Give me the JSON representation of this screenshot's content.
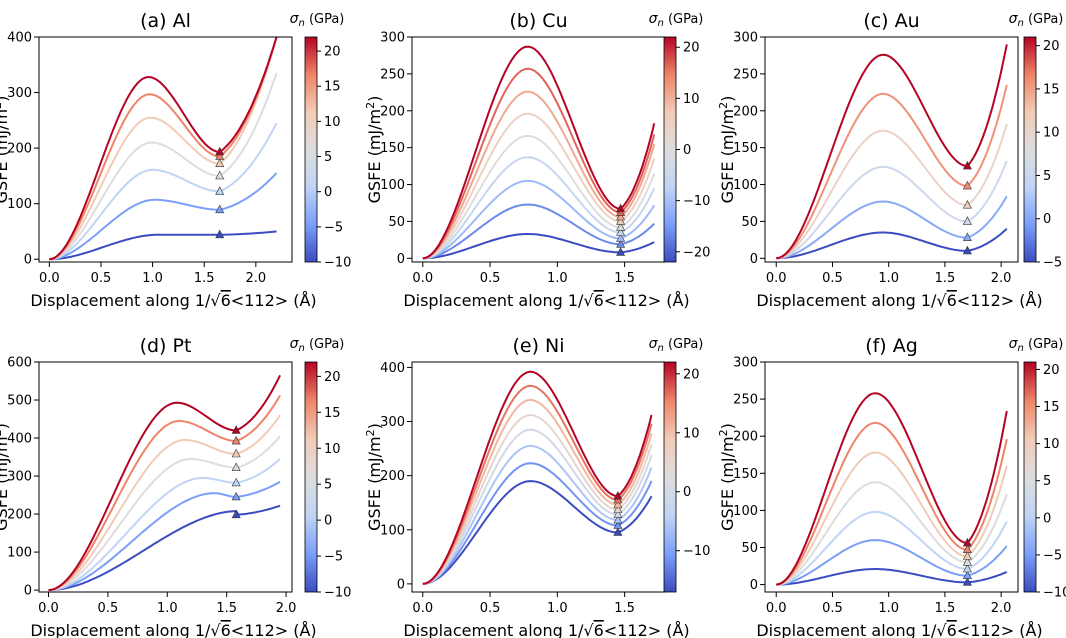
{
  "figure": {
    "x_axis_label_prefix": "Displacement along 1/",
    "x_axis_label_root": "6",
    "x_axis_label_suffix": "<112> (Å)",
    "y_axis_label": "GSFE (mJ/m",
    "y_axis_label_sup": "2",
    "y_axis_label_close": ")",
    "colorbar_title_symbol": "σ",
    "colorbar_title_sub": "n",
    "colorbar_title_unit": "(GPa)",
    "colormap": [
      "#3b4cc0",
      "#7b9ff9",
      "#c0d4f5",
      "#dddddd",
      "#f2cbb7",
      "#ee8468",
      "#b40426"
    ]
  },
  "chart_data": [
    {
      "type": "line",
      "title": "(a) Al",
      "xlim": [
        -0.1,
        2.35
      ],
      "ylim": [
        -5,
        400
      ],
      "xticks": [
        "0.0",
        "0.5",
        "1.0",
        "1.5",
        "2.0"
      ],
      "yticks": [
        "0",
        "100",
        "200",
        "300",
        "400"
      ],
      "cbar_range": [
        -10,
        22
      ],
      "cbar_ticks": [
        "20",
        "15",
        "10",
        "5",
        "0",
        "−5",
        "−10"
      ],
      "x0": 1.65,
      "series": [
        {
          "name": "-10 GPa",
          "peak_x": 1.05,
          "peak": 44,
          "min": 44,
          "end_x": 2.2,
          "end": 50
        },
        {
          "name": "-5 GPa",
          "peak_x": 1.02,
          "peak": 107,
          "min": 89,
          "end_x": 2.2,
          "end": 155
        },
        {
          "name": "0 GPa",
          "peak_x": 1.0,
          "peak": 161,
          "min": 122,
          "end_x": 2.2,
          "end": 245
        },
        {
          "name": "5 GPa",
          "peak_x": 0.99,
          "peak": 210,
          "min": 150,
          "end_x": 2.2,
          "end": 335
        },
        {
          "name": "10 GPa",
          "peak_x": 0.98,
          "peak": 255,
          "min": 172,
          "end_x": 2.2,
          "end": 400
        },
        {
          "name": "15 GPa",
          "peak_x": 0.97,
          "peak": 297,
          "min": 185,
          "end_x": 2.2,
          "end": 400
        },
        {
          "name": "20 GPa",
          "peak_x": 0.96,
          "peak": 328,
          "min": 193,
          "end_x": 2.2,
          "end": 400
        }
      ]
    },
    {
      "type": "line",
      "title": "(b) Cu",
      "xlim": [
        -0.08,
        1.8
      ],
      "ylim": [
        -5,
        300
      ],
      "xticks": [
        "0.0",
        "0.5",
        "1.0",
        "1.5"
      ],
      "yticks": [
        "0",
        "50",
        "100",
        "150",
        "200",
        "250",
        "300"
      ],
      "cbar_range": [
        -22,
        22
      ],
      "cbar_ticks": [
        "20",
        "10",
        "0",
        "−10",
        "−20"
      ],
      "x0": 1.47,
      "series": [
        {
          "name": "-20 GPa",
          "peak_x": 0.78,
          "peak": 33,
          "min": 8,
          "end_x": 1.72,
          "end": 22
        },
        {
          "name": "-13 GPa",
          "peak_x": 0.78,
          "peak": 73,
          "min": 19,
          "end_x": 1.72,
          "end": 47
        },
        {
          "name": "-7 GPa",
          "peak_x": 0.78,
          "peak": 105,
          "min": 27,
          "end_x": 1.72,
          "end": 72
        },
        {
          "name": "0 GPa",
          "peak_x": 0.78,
          "peak": 137,
          "min": 35,
          "end_x": 1.72,
          "end": 95
        },
        {
          "name": "7 GPa",
          "peak_x": 0.78,
          "peak": 166,
          "min": 42,
          "end_x": 1.72,
          "end": 115
        },
        {
          "name": "13 GPa",
          "peak_x": 0.78,
          "peak": 196,
          "min": 50,
          "end_x": 1.72,
          "end": 135
        },
        {
          "name": "17 GPa",
          "peak_x": 0.78,
          "peak": 226,
          "min": 56,
          "end_x": 1.72,
          "end": 155
        },
        {
          "name": "20 GPa",
          "peak_x": 0.78,
          "peak": 257,
          "min": 62,
          "end_x": 1.72,
          "end": 168
        },
        {
          "name": "22 GPa",
          "peak_x": 0.78,
          "peak": 287,
          "min": 67,
          "end_x": 1.72,
          "end": 183
        }
      ]
    },
    {
      "type": "line",
      "title": "(c) Au",
      "xlim": [
        -0.1,
        2.15
      ],
      "ylim": [
        -5,
        300
      ],
      "xticks": [
        "0.0",
        "0.5",
        "1.0",
        "1.5",
        "2.0"
      ],
      "yticks": [
        "0",
        "50",
        "100",
        "150",
        "200",
        "250",
        "300"
      ],
      "cbar_range": [
        -5,
        21
      ],
      "cbar_ticks": [
        "20",
        "15",
        "10",
        "5",
        "0",
        "−5"
      ],
      "x0": 1.7,
      "series": [
        {
          "name": "-5 GPa",
          "peak_x": 0.95,
          "peak": 35,
          "min": 10,
          "end_x": 2.05,
          "end": 40
        },
        {
          "name": "0 GPa",
          "peak_x": 0.95,
          "peak": 77,
          "min": 28,
          "end_x": 2.05,
          "end": 84
        },
        {
          "name": "5 GPa",
          "peak_x": 0.95,
          "peak": 124,
          "min": 50,
          "end_x": 2.05,
          "end": 132
        },
        {
          "name": "10 GPa",
          "peak_x": 0.95,
          "peak": 173,
          "min": 72,
          "end_x": 2.05,
          "end": 182
        },
        {
          "name": "15 GPa",
          "peak_x": 0.95,
          "peak": 223,
          "min": 98,
          "end_x": 2.05,
          "end": 235
        },
        {
          "name": "20 GPa",
          "peak_x": 0.95,
          "peak": 276,
          "min": 125,
          "end_x": 2.05,
          "end": 290
        }
      ]
    },
    {
      "type": "line",
      "title": "(d) Pt",
      "xlim": [
        -0.08,
        2.05
      ],
      "ylim": [
        -5,
        600
      ],
      "xticks": [
        "0.0",
        "0.5",
        "1.0",
        "1.5",
        "2.0"
      ],
      "yticks": [
        "0",
        "100",
        "200",
        "300",
        "400",
        "500",
        "600"
      ],
      "cbar_range": [
        -10,
        22
      ],
      "cbar_ticks": [
        "20",
        "15",
        "10",
        "5",
        "0",
        "−5",
        "−10"
      ],
      "x0": 1.58,
      "series": [
        {
          "name": "-10 GPa",
          "peak_x": 1.6,
          "peak": 208,
          "min": 198,
          "end_x": 1.95,
          "end": 222
        },
        {
          "name": "-5 GPa",
          "peak_x": 1.4,
          "peak": 255,
          "min": 245,
          "end_x": 1.95,
          "end": 285
        },
        {
          "name": "0 GPa",
          "peak_x": 1.3,
          "peak": 295,
          "min": 282,
          "end_x": 1.95,
          "end": 345
        },
        {
          "name": "5 GPa",
          "peak_x": 1.2,
          "peak": 345,
          "min": 322,
          "end_x": 1.95,
          "end": 405
        },
        {
          "name": "10 GPa",
          "peak_x": 1.15,
          "peak": 395,
          "min": 358,
          "end_x": 1.95,
          "end": 460
        },
        {
          "name": "15 GPa",
          "peak_x": 1.1,
          "peak": 445,
          "min": 392,
          "end_x": 1.95,
          "end": 512
        },
        {
          "name": "20 GPa",
          "peak_x": 1.08,
          "peak": 493,
          "min": 420,
          "end_x": 1.95,
          "end": 565
        }
      ]
    },
    {
      "type": "line",
      "title": "(e) Ni",
      "xlim": [
        -0.08,
        1.8
      ],
      "ylim": [
        -15,
        410
      ],
      "xticks": [
        "0.0",
        "0.5",
        "1.0",
        "1.5"
      ],
      "yticks": [
        "0",
        "100",
        "200",
        "300",
        "400"
      ],
      "cbar_range": [
        -17,
        22
      ],
      "cbar_ticks": [
        "20",
        "10",
        "0",
        "−10"
      ],
      "x0": 1.45,
      "series": [
        {
          "name": "-15 GPa",
          "peak_x": 0.8,
          "peak": 190,
          "min": 95,
          "end_x": 1.7,
          "end": 162
        },
        {
          "name": "-10 GPa",
          "peak_x": 0.8,
          "peak": 223,
          "min": 108,
          "end_x": 1.7,
          "end": 190
        },
        {
          "name": "-5 GPa",
          "peak_x": 0.8,
          "peak": 255,
          "min": 118,
          "end_x": 1.7,
          "end": 215
        },
        {
          "name": "0 GPa",
          "peak_x": 0.8,
          "peak": 285,
          "min": 128,
          "end_x": 1.7,
          "end": 238
        },
        {
          "name": "5 GPa",
          "peak_x": 0.8,
          "peak": 312,
          "min": 137,
          "end_x": 1.7,
          "end": 258
        },
        {
          "name": "10 GPa",
          "peak_x": 0.8,
          "peak": 340,
          "min": 146,
          "end_x": 1.7,
          "end": 278
        },
        {
          "name": "15 GPa",
          "peak_x": 0.8,
          "peak": 366,
          "min": 155,
          "end_x": 1.7,
          "end": 296
        },
        {
          "name": "20 GPa",
          "peak_x": 0.8,
          "peak": 392,
          "min": 162,
          "end_x": 1.7,
          "end": 312
        }
      ]
    },
    {
      "type": "line",
      "title": "(f) Ag",
      "xlim": [
        -0.1,
        2.15
      ],
      "ylim": [
        -10,
        300
      ],
      "xticks": [
        "0.0",
        "0.5",
        "1.0",
        "1.5",
        "2.0"
      ],
      "yticks": [
        "0",
        "50",
        "100",
        "150",
        "200",
        "250",
        "300"
      ],
      "cbar_range": [
        -10,
        21
      ],
      "cbar_ticks": [
        "20",
        "15",
        "10",
        "5",
        "0",
        "−5",
        "−10"
      ],
      "x0": 1.7,
      "series": [
        {
          "name": "-10 GPa",
          "peak_x": 0.88,
          "peak": 21,
          "min": 3,
          "end_x": 2.05,
          "end": 17
        },
        {
          "name": "-5 GPa",
          "peak_x": 0.88,
          "peak": 60,
          "min": 12,
          "end_x": 2.05,
          "end": 52
        },
        {
          "name": "0 GPa",
          "peak_x": 0.88,
          "peak": 98,
          "min": 21,
          "end_x": 2.05,
          "end": 85
        },
        {
          "name": "5 GPa",
          "peak_x": 0.88,
          "peak": 138,
          "min": 30,
          "end_x": 2.05,
          "end": 122
        },
        {
          "name": "10 GPa",
          "peak_x": 0.88,
          "peak": 178,
          "min": 38,
          "end_x": 2.05,
          "end": 160
        },
        {
          "name": "15 GPa",
          "peak_x": 0.88,
          "peak": 218,
          "min": 47,
          "end_x": 2.05,
          "end": 196
        },
        {
          "name": "20 GPa",
          "peak_x": 0.88,
          "peak": 258,
          "min": 56,
          "end_x": 2.05,
          "end": 234
        }
      ]
    }
  ]
}
